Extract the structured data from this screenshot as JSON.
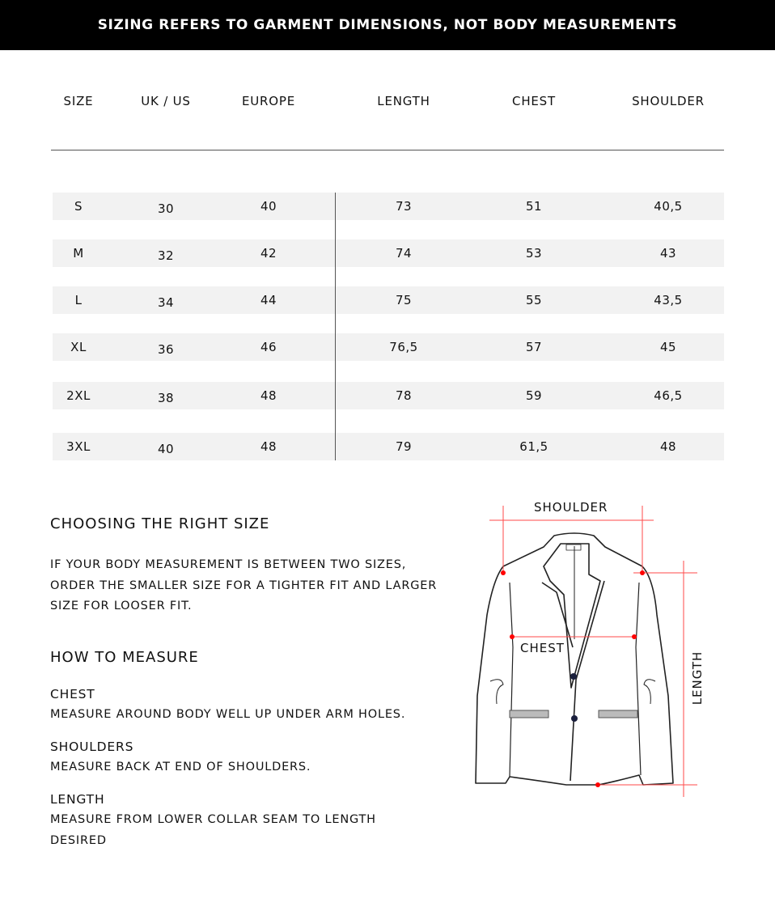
{
  "banner": "SIZING REFERS TO GARMENT DIMENSIONS, NOT BODY MEASUREMENTS",
  "table": {
    "headers": [
      "SIZE",
      "UK / US",
      "EUROPE",
      "LENGTH",
      "CHEST",
      "SHOULDER"
    ],
    "rows": [
      [
        "S",
        "30",
        "40",
        "73",
        "51",
        "40,5"
      ],
      [
        "M",
        "32",
        "42",
        "74",
        "53",
        "43"
      ],
      [
        "L",
        "34",
        "44",
        "75",
        "55",
        "43,5"
      ],
      [
        "XL",
        "36",
        "46",
        "76,5",
        "57",
        "45"
      ],
      [
        "2XL",
        "38",
        "48",
        "78",
        "59",
        "46,5"
      ],
      [
        "3XL",
        "40",
        "48",
        "79",
        "61,5",
        "48"
      ]
    ]
  },
  "choosing": {
    "title": "CHOOSING THE RIGHT SIZE",
    "text": "IF YOUR BODY MEASUREMENT IS BETWEEN TWO SIZES, ORDER THE SMALLER SIZE FOR A TIGHTER FIT AND LARGER SIZE FOR LOOSER FIT."
  },
  "how": {
    "title": "HOW TO MEASURE",
    "items": [
      {
        "label": "CHEST",
        "text": "MEASURE AROUND BODY WELL UP UNDER ARM HOLES."
      },
      {
        "label": "SHOULDERS",
        "text": "MEASURE BACK AT END OF SHOULDERS."
      },
      {
        "label": "LENGTH",
        "text": "MEASURE FROM LOWER COLLAR SEAM TO LENGTH DESIRED"
      }
    ]
  },
  "diagram": {
    "shoulder": "SHOULDER",
    "chest": "CHEST",
    "length": "LENGTH",
    "accent": "#ff1a1a"
  }
}
